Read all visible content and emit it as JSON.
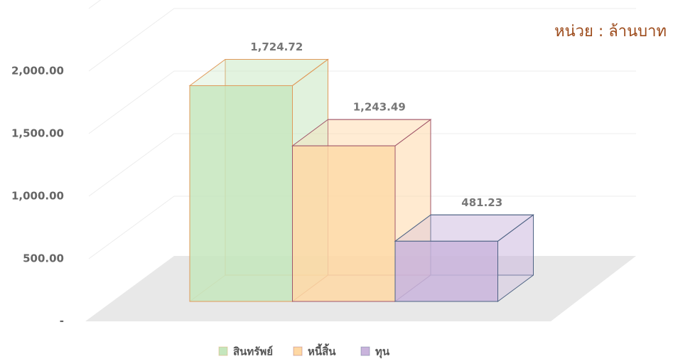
{
  "chart_data": {
    "type": "bar3d",
    "annotation": "หน่วย : ล้านบาท",
    "categories": [
      "สินทรัพย์",
      "หนี้สิ้น",
      "ทุน"
    ],
    "values": [
      1724.72,
      1243.49,
      481.23
    ],
    "value_labels": [
      "1,724.72",
      "1,243.49",
      "481.23"
    ],
    "colors": [
      "#c5e6bd",
      "#fed8a4",
      "#c9b4dc"
    ],
    "edge_colors": [
      "#e09a5a",
      "#a0566a",
      "#4e6384"
    ],
    "ylim": [
      0,
      2500
    ],
    "yticks": [
      {
        "value": 0,
        "label": "-"
      },
      {
        "value": 500,
        "label": "500.00"
      },
      {
        "value": 1000,
        "label": "1,000.00"
      },
      {
        "value": 1500,
        "label": "1,500.00"
      },
      {
        "value": 2000,
        "label": "2,000.00"
      }
    ],
    "grid": true,
    "legend": "bottom"
  }
}
